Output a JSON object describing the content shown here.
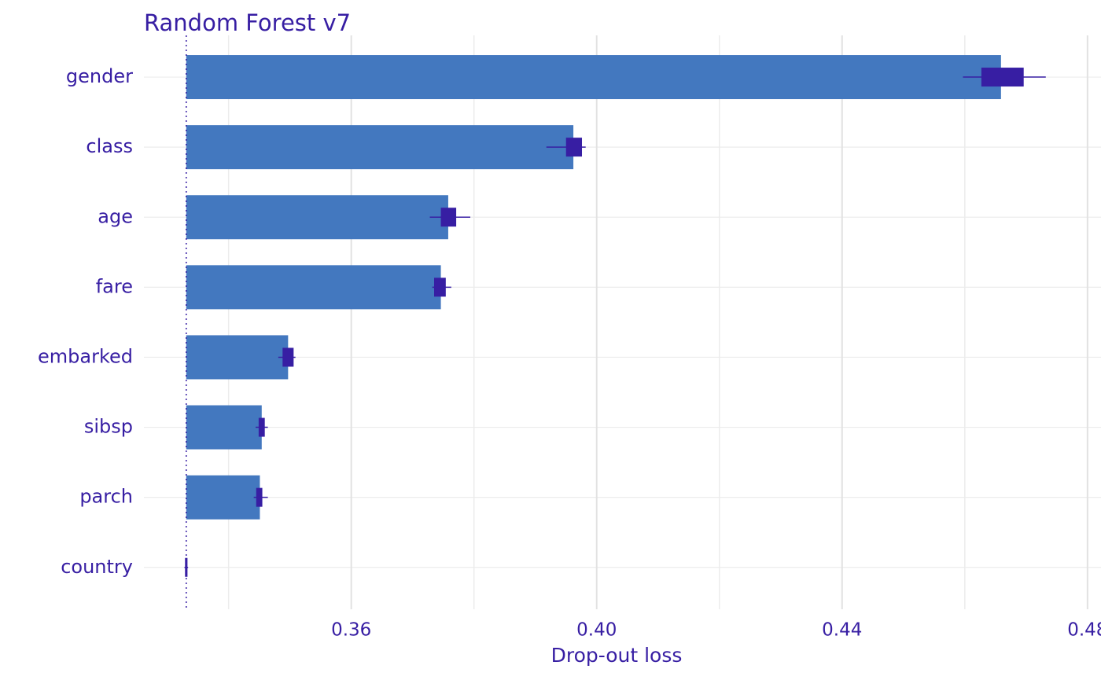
{
  "chart_data": {
    "type": "bar",
    "title": "Random Forest v7",
    "x_label": "Drop-out loss",
    "categories": [
      "gender",
      "class",
      "age",
      "fare",
      "embarked",
      "sibsp",
      "parch",
      "country"
    ],
    "values": [
      0.4659,
      0.3962,
      0.3758,
      0.3746,
      0.3497,
      0.3454,
      0.3451,
      0.3331
    ],
    "baseline": 0.3331,
    "color": "#4378bf",
    "box_color": "#371ea3",
    "boxes": [
      {
        "min": 0.4597,
        "q1": 0.4627,
        "q3": 0.4696,
        "max": 0.4732
      },
      {
        "min": 0.3918,
        "q1": 0.395,
        "q3": 0.3976,
        "max": 0.3982
      },
      {
        "min": 0.3728,
        "q1": 0.3746,
        "q3": 0.3771,
        "max": 0.3794
      },
      {
        "min": 0.3732,
        "q1": 0.3735,
        "q3": 0.3754,
        "max": 0.3763
      },
      {
        "min": 0.3481,
        "q1": 0.3488,
        "q3": 0.3506,
        "max": 0.3509
      },
      {
        "min": 0.3444,
        "q1": 0.3449,
        "q3": 0.3459,
        "max": 0.3464
      },
      {
        "min": 0.3441,
        "q1": 0.3445,
        "q3": 0.3455,
        "max": 0.3464
      },
      {
        "min": 0.3328,
        "q1": 0.3329,
        "q3": 0.3333,
        "max": 0.3334
      }
    ],
    "xlim": [
      0.3262,
      0.4822
    ],
    "xticks": [
      0.36,
      {
        "value": 0.4,
        "label": "0.40"
      },
      0.44,
      0.48
    ],
    "minor_xticks": [
      0.34,
      0.38,
      0.42,
      0.46
    ],
    "grid": true
  }
}
